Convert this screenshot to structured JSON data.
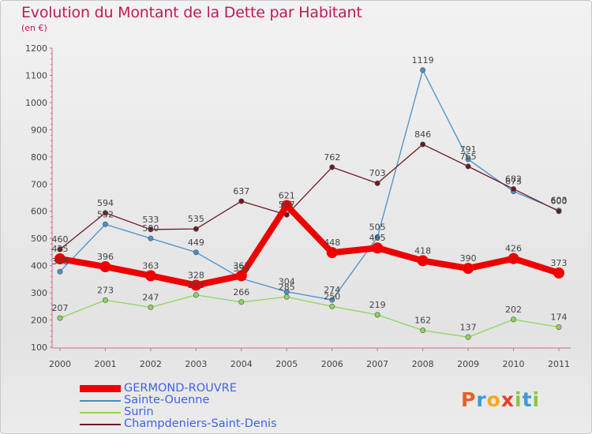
{
  "title": "Evolution du Montant de la Dette par Habitant",
  "subtitle": "(en €)",
  "brand": {
    "text": "Proxiti",
    "letters": [
      {
        "ch": "P",
        "color": "#e85f26"
      },
      {
        "ch": "r",
        "color": "#3c9ad8"
      },
      {
        "ch": "o",
        "color": "#f3a91b"
      },
      {
        "ch": "x",
        "color": "#e83b2b"
      },
      {
        "ch": "i",
        "color": "#8cc63e"
      },
      {
        "ch": "t",
        "color": "#3c9ad8"
      },
      {
        "ch": "i",
        "color": "#8cc63e"
      }
    ]
  },
  "chart_data": {
    "type": "line",
    "x": [
      "2000",
      "2001",
      "2002",
      "2003",
      "2004",
      "2005",
      "2006",
      "2007",
      "2008",
      "2009",
      "2010",
      "2011"
    ],
    "ylim": [
      100,
      1200
    ],
    "yticks": [
      "100",
      "200",
      "300",
      "400",
      "500",
      "600",
      "700",
      "800",
      "900",
      "1000",
      "1100",
      "1200"
    ],
    "grid": false,
    "legend_position": "bottom-left",
    "series": [
      {
        "name": "GERMOND-ROUVRE",
        "color": "#ee0000",
        "values": [
          425,
          396,
          363,
          328,
          363,
          621,
          448,
          465,
          418,
          390,
          426,
          373
        ],
        "labels": [
          "425",
          "396",
          "363",
          "328",
          "363",
          "621",
          "448",
          "465",
          "418",
          "390",
          "426",
          "373"
        ]
      },
      {
        "name": "Sainte-Ouenne",
        "color": "#4a90c8",
        "values": [
          378,
          552,
          500,
          449,
          353,
          304,
          274,
          505,
          1119,
          791,
          673,
          603
        ],
        "labels": [
          "378",
          "552",
          "500",
          "449",
          "353",
          "304",
          "274",
          "505",
          "1119",
          "791",
          "673",
          "603"
        ]
      },
      {
        "name": "Surin",
        "color": "#8fd45a",
        "values": [
          207,
          273,
          247,
          292,
          266,
          285,
          250,
          219,
          162,
          137,
          202,
          174
        ],
        "labels": [
          "207",
          "273",
          "247",
          "292",
          "266",
          "285",
          "250",
          "219",
          "162",
          "137",
          "202",
          "174"
        ]
      },
      {
        "name": "Champdeniers-Saint-Denis",
        "color": "#6b1a24",
        "values": [
          460,
          594,
          533,
          535,
          637,
          587,
          762,
          703,
          846,
          765,
          682,
          600
        ],
        "labels": [
          "460",
          "594",
          "533",
          "535",
          "637",
          "587",
          "762",
          "703",
          "846",
          "765",
          "682",
          "600"
        ]
      }
    ]
  }
}
